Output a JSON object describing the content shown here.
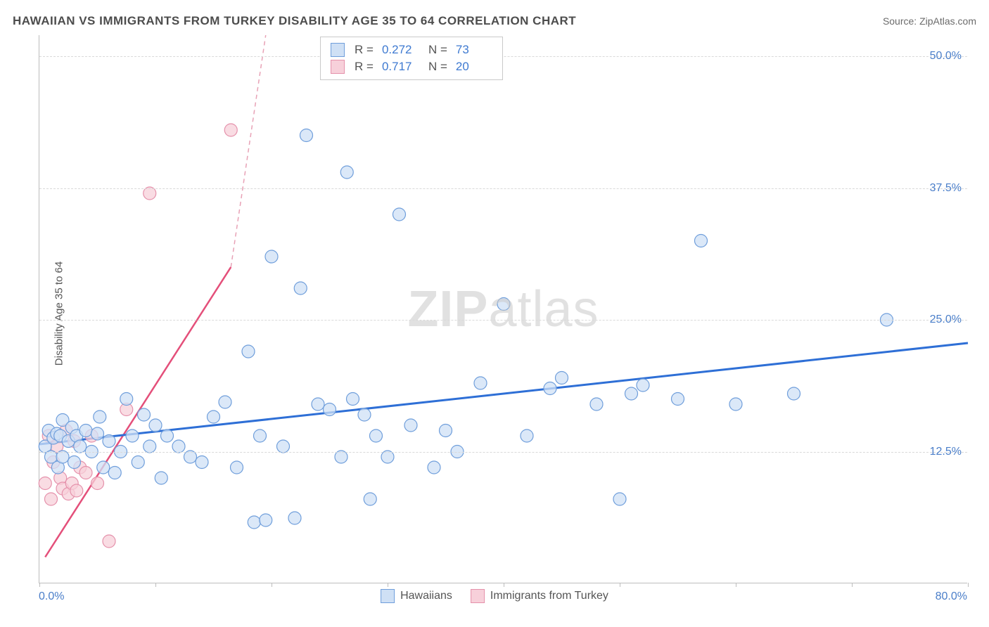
{
  "header": {
    "title": "HAWAIIAN VS IMMIGRANTS FROM TURKEY DISABILITY AGE 35 TO 64 CORRELATION CHART",
    "source": "Source: ZipAtlas.com"
  },
  "chart": {
    "type": "scatter",
    "ylabel": "Disability Age 35 to 64",
    "xlim": [
      0,
      80
    ],
    "ylim": [
      0,
      52
    ],
    "xtick_positions": [
      0,
      10,
      20,
      30,
      40,
      50,
      60,
      70,
      80
    ],
    "ytick_labels": [
      {
        "value": 12.5,
        "text": "12.5%"
      },
      {
        "value": 25.0,
        "text": "25.0%"
      },
      {
        "value": 37.5,
        "text": "37.5%"
      },
      {
        "value": 50.0,
        "text": "50.0%"
      }
    ],
    "xaxis_label_left": "0.0%",
    "xaxis_label_right": "80.0%",
    "background_color": "#ffffff",
    "grid_color": "#d9d9d9",
    "marker_radius": 9,
    "marker_stroke_width": 1.2,
    "series": {
      "hawaiians": {
        "label": "Hawaiians",
        "fill": "#cfe0f5",
        "stroke": "#6f9edb",
        "fill_opacity": 0.75,
        "r_value": "0.272",
        "n_value": "73",
        "trend": {
          "x1": 0,
          "y1": 13.2,
          "x2": 80,
          "y2": 22.8,
          "color": "#2e6fd6",
          "width": 3
        },
        "points": [
          [
            0.5,
            13.0
          ],
          [
            0.8,
            14.5
          ],
          [
            1.0,
            12.0
          ],
          [
            1.2,
            13.8
          ],
          [
            1.5,
            14.2
          ],
          [
            1.6,
            11.0
          ],
          [
            1.8,
            14.0
          ],
          [
            2.0,
            12.0
          ],
          [
            2.0,
            15.5
          ],
          [
            2.5,
            13.5
          ],
          [
            2.8,
            14.8
          ],
          [
            3.0,
            11.5
          ],
          [
            3.2,
            14.0
          ],
          [
            3.5,
            13.0
          ],
          [
            4.0,
            14.5
          ],
          [
            4.5,
            12.5
          ],
          [
            5.0,
            14.2
          ],
          [
            5.2,
            15.8
          ],
          [
            5.5,
            11.0
          ],
          [
            6.0,
            13.5
          ],
          [
            6.5,
            10.5
          ],
          [
            7.0,
            12.5
          ],
          [
            7.5,
            17.5
          ],
          [
            8.0,
            14.0
          ],
          [
            8.5,
            11.5
          ],
          [
            9.0,
            16.0
          ],
          [
            9.5,
            13.0
          ],
          [
            10.0,
            15.0
          ],
          [
            10.5,
            10.0
          ],
          [
            11.0,
            14.0
          ],
          [
            12.0,
            13.0
          ],
          [
            13.0,
            12.0
          ],
          [
            14.0,
            11.5
          ],
          [
            15.0,
            15.8
          ],
          [
            16.0,
            17.2
          ],
          [
            17.0,
            11.0
          ],
          [
            18.0,
            22.0
          ],
          [
            18.5,
            5.8
          ],
          [
            19.0,
            14.0
          ],
          [
            19.5,
            6.0
          ],
          [
            20.0,
            31.0
          ],
          [
            21.0,
            13.0
          ],
          [
            22.0,
            6.2
          ],
          [
            22.5,
            28.0
          ],
          [
            23.0,
            42.5
          ],
          [
            24.0,
            17.0
          ],
          [
            25.0,
            16.5
          ],
          [
            26.0,
            12.0
          ],
          [
            26.5,
            39.0
          ],
          [
            27.0,
            17.5
          ],
          [
            28.0,
            16.0
          ],
          [
            28.5,
            8.0
          ],
          [
            29.0,
            14.0
          ],
          [
            30.0,
            12.0
          ],
          [
            31.0,
            35.0
          ],
          [
            32.0,
            15.0
          ],
          [
            34.0,
            11.0
          ],
          [
            35.0,
            14.5
          ],
          [
            36.0,
            12.5
          ],
          [
            38.0,
            19.0
          ],
          [
            40.0,
            26.5
          ],
          [
            42.0,
            14.0
          ],
          [
            44.0,
            18.5
          ],
          [
            45.0,
            19.5
          ],
          [
            48.0,
            17.0
          ],
          [
            50.0,
            8.0
          ],
          [
            51.0,
            18.0
          ],
          [
            52.0,
            18.8
          ],
          [
            55.0,
            17.5
          ],
          [
            57.0,
            32.5
          ],
          [
            60.0,
            17.0
          ],
          [
            65.0,
            18.0
          ],
          [
            73.0,
            25.0
          ]
        ]
      },
      "turkey": {
        "label": "Immigrants from Turkey",
        "fill": "#f7d0da",
        "stroke": "#e591ab",
        "fill_opacity": 0.75,
        "r_value": "0.717",
        "n_value": "20",
        "trend_solid": {
          "x1": 0.5,
          "y1": 2.5,
          "x2": 16.5,
          "y2": 30.0,
          "color": "#e44f7a",
          "width": 2.5
        },
        "trend_dashed": {
          "x1": 16.5,
          "y1": 30.0,
          "x2": 19.5,
          "y2": 52.0,
          "color": "#e8a2b6",
          "width": 1.5
        },
        "points": [
          [
            0.5,
            9.5
          ],
          [
            0.8,
            14.0
          ],
          [
            1.0,
            8.0
          ],
          [
            1.2,
            11.5
          ],
          [
            1.5,
            13.0
          ],
          [
            1.8,
            10.0
          ],
          [
            2.0,
            9.0
          ],
          [
            2.3,
            14.5
          ],
          [
            2.5,
            8.5
          ],
          [
            2.8,
            9.5
          ],
          [
            3.0,
            13.5
          ],
          [
            3.2,
            8.8
          ],
          [
            3.5,
            11.0
          ],
          [
            4.0,
            10.5
          ],
          [
            4.5,
            14.0
          ],
          [
            5.0,
            9.5
          ],
          [
            6.0,
            4.0
          ],
          [
            7.5,
            16.5
          ],
          [
            9.5,
            37.0
          ],
          [
            16.5,
            43.0
          ]
        ]
      }
    }
  },
  "rn_legend": {
    "r_label": "R =",
    "n_label": "N ="
  },
  "watermark": {
    "part1": "ZIP",
    "part2": "atlas"
  }
}
